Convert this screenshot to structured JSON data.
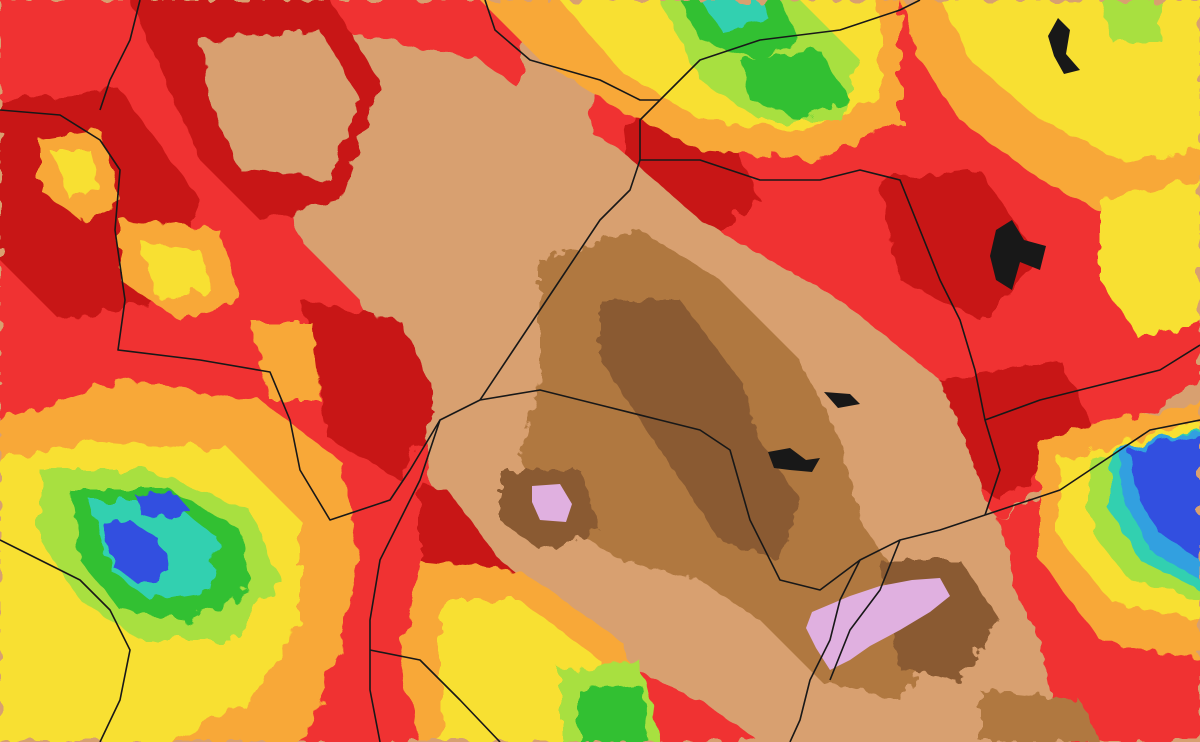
{
  "map": {
    "type": "precipitation-anomaly-map",
    "colors": {
      "very_dry_pink": "#e0b0e0",
      "dark_brown": "#8a5a30",
      "mid_brown": "#b07840",
      "tan": "#d8a070",
      "dark_red": "#c81818",
      "red": "#f03030",
      "orange": "#f07830",
      "orange_yellow": "#f8a838",
      "yellow": "#f8e030",
      "light_green": "#a8e040",
      "green": "#30c030",
      "cyan": "#30d0b0",
      "light_blue": "#30a0e0",
      "blue": "#3050e0",
      "deep_blue": "#2828c0",
      "border_line": "#181818"
    }
  }
}
